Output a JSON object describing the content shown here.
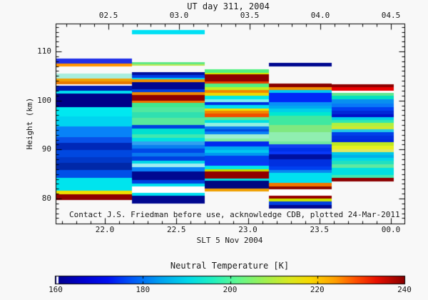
{
  "figure": {
    "top_axis": {
      "title": "UT day 311, 2004",
      "tick_labels": [
        "02.5",
        "03.0",
        "03.5",
        "04.0",
        "04.5"
      ],
      "tick_values": [
        2.5,
        3.0,
        3.5,
        4.0,
        4.5
      ]
    },
    "left_axis": {
      "label": "Height (km)",
      "tick_labels": [
        "80",
        "90",
        "100",
        "110"
      ],
      "tick_values": [
        80,
        90,
        100,
        110
      ]
    },
    "bottom_axis": {
      "label": "SLT 5 Nov 2004",
      "tick_labels": [
        "22.0",
        "22.5",
        "23.0",
        "23.5",
        "00.0"
      ],
      "tick_values": [
        22.0,
        22.5,
        23.0,
        23.5,
        24.0
      ]
    },
    "annotation": "Contact J.S. Friedman before use, acknowledge CDB, plotted 24-Mar-2011",
    "colorbar": {
      "title": "Neutral Temperature [K]",
      "tick_labels": [
        "160",
        "180",
        "200",
        "220",
        "240"
      ],
      "tick_values": [
        160,
        180,
        200,
        220,
        240
      ]
    }
  },
  "chart_data": {
    "type": "heatmap",
    "title": "UT day 311, 2004",
    "xlabel": "SLT 5 Nov 2004",
    "ylabel": "Height (km)",
    "value_label": "Neutral Temperature [K]",
    "value_range": [
      160,
      240
    ],
    "xlim_slt": [
      21.656,
      24.095
    ],
    "ylim_km": [
      74.9,
      115.7
    ],
    "colormap_stops": [
      [
        0.0,
        "#00008a"
      ],
      [
        0.08,
        "#0000d0"
      ],
      [
        0.15,
        "#0010f0"
      ],
      [
        0.22,
        "#0058f8"
      ],
      [
        0.3,
        "#00a0f0"
      ],
      [
        0.38,
        "#00d8e8"
      ],
      [
        0.45,
        "#20f0c0"
      ],
      [
        0.52,
        "#60f890"
      ],
      [
        0.6,
        "#a0f050"
      ],
      [
        0.67,
        "#d8e820"
      ],
      [
        0.73,
        "#f8d800"
      ],
      [
        0.8,
        "#ffa000"
      ],
      [
        0.86,
        "#ff5000"
      ],
      [
        0.92,
        "#e81000"
      ],
      [
        1.0,
        "#8a0000"
      ]
    ],
    "columns": [
      {
        "t_start": 21.656,
        "t_end": 22.19,
        "segments": [
          [
            108.53,
            107.58,
            "#2030e8"
          ],
          [
            107.58,
            107.0,
            "#ff9400"
          ],
          [
            105.5,
            104.46,
            "#a8eedd"
          ],
          [
            104.46,
            103.88,
            "#f0a000"
          ],
          [
            103.88,
            103.37,
            "#e87800"
          ],
          [
            103.37,
            103.0,
            "#ffffff"
          ],
          [
            103.0,
            101.98,
            "#0018b0"
          ],
          [
            101.98,
            101.47,
            "#00dff0"
          ],
          [
            101.47,
            98.63,
            "#000088"
          ],
          [
            98.63,
            96.74,
            "#00e8f0"
          ],
          [
            96.74,
            94.7,
            "#00d4f0"
          ],
          [
            94.7,
            92.52,
            "#0882f8"
          ],
          [
            92.52,
            91.35,
            "#0850e8"
          ],
          [
            91.35,
            89.9,
            "#0028b8"
          ],
          [
            89.9,
            88.44,
            "#0048e0"
          ],
          [
            88.44,
            87.27,
            "#0038c8"
          ],
          [
            87.27,
            85.82,
            "#0028a8"
          ],
          [
            85.82,
            84.22,
            "#0050e8"
          ],
          [
            84.22,
            81.6,
            "#00e4ee"
          ],
          [
            81.6,
            80.94,
            "#f0e000"
          ],
          [
            80.94,
            79.7,
            "#900000"
          ]
        ]
      },
      {
        "t_start": 22.19,
        "t_end": 22.698,
        "segments": [
          [
            114.39,
            113.43,
            "#00e0f4"
          ],
          [
            107.84,
            107.36,
            "#60e886"
          ],
          [
            107.36,
            107.03,
            "#bce850"
          ],
          [
            105.81,
            105.14,
            "#0010a0"
          ],
          [
            105.14,
            104.56,
            "#0040e8"
          ],
          [
            104.56,
            104.27,
            "#00d0f0"
          ],
          [
            104.27,
            103.77,
            "#f09000"
          ],
          [
            103.77,
            102.27,
            "#000890"
          ],
          [
            102.27,
            101.73,
            "#0040e0"
          ],
          [
            101.73,
            101.15,
            "#f08800"
          ],
          [
            101.15,
            99.94,
            "#8c0000"
          ],
          [
            99.94,
            99.51,
            "#f07000"
          ],
          [
            99.51,
            98.63,
            "#40e890"
          ],
          [
            98.63,
            97.61,
            "#50e8a0"
          ],
          [
            97.61,
            96.45,
            "#30e0b0"
          ],
          [
            96.45,
            94.99,
            "#58e89c"
          ],
          [
            94.99,
            94.26,
            "#0040e0"
          ],
          [
            94.26,
            93.05,
            "#00e0d0"
          ],
          [
            93.05,
            92.32,
            "#40e8b0"
          ],
          [
            92.32,
            91.6,
            "#00e0e0"
          ],
          [
            91.6,
            90.87,
            "#30a0f0"
          ],
          [
            90.87,
            90.14,
            "#0880f0"
          ],
          [
            90.14,
            89.27,
            "#0048e8"
          ],
          [
            89.27,
            88.54,
            "#0878f0"
          ],
          [
            88.54,
            87.71,
            "#0040e0"
          ],
          [
            87.71,
            87.08,
            "#00d8e8"
          ],
          [
            87.08,
            86.35,
            "#a0ecf0"
          ],
          [
            86.35,
            85.48,
            "#0880f8"
          ],
          [
            85.48,
            83.82,
            "#000890"
          ],
          [
            83.82,
            83.09,
            "#0040e0"
          ],
          [
            83.09,
            82.47,
            "#00e0f0"
          ],
          [
            82.47,
            81.12,
            "#ffffff"
          ],
          [
            81.12,
            80.53,
            "#00e0f0"
          ],
          [
            80.53,
            78.97,
            "#000890"
          ]
        ]
      },
      {
        "t_start": 22.698,
        "t_end": 23.147,
        "segments": [
          [
            106.3,
            105.66,
            "#50f080"
          ],
          [
            105.66,
            105.33,
            "#d0f000"
          ],
          [
            105.33,
            103.88,
            "#8c0000"
          ],
          [
            103.88,
            103.39,
            "#e84000"
          ],
          [
            103.39,
            102.76,
            "#50f080"
          ],
          [
            102.76,
            102.13,
            "#c0f020"
          ],
          [
            102.13,
            101.55,
            "#f08800"
          ],
          [
            101.55,
            100.92,
            "#f0d800"
          ],
          [
            100.92,
            100.2,
            "#00e8e8"
          ],
          [
            100.2,
            99.61,
            "#80f0f0"
          ],
          [
            99.61,
            99.03,
            "#0030e0"
          ],
          [
            99.03,
            98.39,
            "#00e0f0"
          ],
          [
            98.39,
            97.87,
            "#f0e000"
          ],
          [
            97.87,
            97.28,
            "#f08800"
          ],
          [
            97.28,
            96.6,
            "#f05000"
          ],
          [
            96.6,
            95.97,
            "#60e890"
          ],
          [
            95.97,
            95.39,
            "#00e0e0"
          ],
          [
            95.39,
            94.75,
            "#90f0e0"
          ],
          [
            94.75,
            94.16,
            "#0878f0"
          ],
          [
            94.16,
            93.68,
            "#0048e0"
          ],
          [
            93.68,
            93.05,
            "#0880f8"
          ],
          [
            93.05,
            92.22,
            "#a0f0d0"
          ],
          [
            92.22,
            91.64,
            "#80eea0"
          ],
          [
            91.64,
            90.66,
            "#0028f0"
          ],
          [
            90.66,
            89.93,
            "#00a8f0"
          ],
          [
            89.93,
            89.31,
            "#00c8f0"
          ],
          [
            89.31,
            88.73,
            "#0098f0"
          ],
          [
            88.73,
            87.37,
            "#0040f0"
          ],
          [
            87.37,
            86.68,
            "#0838f8"
          ],
          [
            86.68,
            85.91,
            "#00e8e8"
          ],
          [
            85.91,
            85.52,
            "#c8d800"
          ],
          [
            85.52,
            84.11,
            "#900000"
          ],
          [
            84.11,
            83.63,
            "#00e0e0"
          ],
          [
            83.63,
            82.02,
            "#000880"
          ],
          [
            82.02,
            81.44,
            "#f0a000"
          ]
        ]
      },
      {
        "t_start": 23.147,
        "t_end": 23.588,
        "segments": [
          [
            107.61,
            106.88,
            "#000890"
          ],
          [
            103.43,
            102.75,
            "#880000"
          ],
          [
            102.75,
            102.17,
            "#f09000"
          ],
          [
            102.17,
            101.59,
            "#00c8f0"
          ],
          [
            101.59,
            99.61,
            "#0028f8"
          ],
          [
            99.61,
            98.89,
            "#0890f8"
          ],
          [
            98.89,
            98.3,
            "#00a8f0"
          ],
          [
            98.3,
            97.67,
            "#00d0e8"
          ],
          [
            97.67,
            96.94,
            "#00e8d0"
          ],
          [
            96.94,
            95.0,
            "#40e8a0"
          ],
          [
            95.0,
            93.55,
            "#80e880"
          ],
          [
            93.55,
            91.66,
            "#90eeb0"
          ],
          [
            91.66,
            91.06,
            "#70e8a0"
          ],
          [
            91.06,
            90.28,
            "#1040f0"
          ],
          [
            90.28,
            89.6,
            "#0030e8"
          ],
          [
            89.6,
            88.98,
            "#0838f8"
          ],
          [
            88.98,
            88.0,
            "#0010a0"
          ],
          [
            88.0,
            86.54,
            "#0030e0"
          ],
          [
            86.54,
            85.82,
            "#0040f0"
          ],
          [
            85.82,
            85.19,
            "#0888f0"
          ],
          [
            85.19,
            83.15,
            "#00e0f0"
          ],
          [
            83.15,
            82.51,
            "#f07800"
          ],
          [
            82.51,
            81.93,
            "#8c0800"
          ],
          [
            81.93,
            80.53,
            "#ffffff"
          ],
          [
            80.53,
            79.99,
            "#980000"
          ],
          [
            79.99,
            79.41,
            "#c8e800"
          ],
          [
            79.41,
            78.64,
            "#0040e0"
          ],
          [
            78.64,
            77.95,
            "#000890"
          ]
        ]
      },
      {
        "t_start": 23.588,
        "t_end": 24.02,
        "segments": [
          [
            103.24,
            102.66,
            "#8c0000"
          ],
          [
            102.66,
            102.02,
            "#e80000"
          ],
          [
            102.02,
            101.51,
            "#ffffff"
          ],
          [
            101.51,
            100.97,
            "#60e890"
          ],
          [
            100.97,
            100.2,
            "#00e0c0"
          ],
          [
            100.2,
            99.37,
            "#0890f0"
          ],
          [
            99.37,
            98.63,
            "#0878f8"
          ],
          [
            98.63,
            97.91,
            "#0040f0"
          ],
          [
            97.91,
            97.18,
            "#0028d8"
          ],
          [
            97.18,
            96.55,
            "#0010c8"
          ],
          [
            96.55,
            95.97,
            "#00d0e8"
          ],
          [
            95.97,
            95.39,
            "#30e8b0"
          ],
          [
            95.39,
            94.75,
            "#b0f040"
          ],
          [
            94.75,
            94.12,
            "#d0e830"
          ],
          [
            94.12,
            93.55,
            "#20c8e8"
          ],
          [
            93.55,
            92.81,
            "#0040e8"
          ],
          [
            92.81,
            92.08,
            "#0030e0"
          ],
          [
            92.08,
            91.46,
            "#0028e0"
          ],
          [
            91.46,
            90.82,
            "#c0e820"
          ],
          [
            90.82,
            90.09,
            "#e8f020"
          ],
          [
            90.09,
            89.5,
            "#e0e860"
          ],
          [
            89.5,
            88.88,
            "#00c8e8"
          ],
          [
            88.88,
            88.25,
            "#00b0e8"
          ],
          [
            88.25,
            87.66,
            "#00d8e8"
          ],
          [
            87.66,
            86.93,
            "#20e0c0"
          ],
          [
            86.93,
            86.21,
            "#60e8a0"
          ],
          [
            86.21,
            84.75,
            "#00e0e0"
          ],
          [
            84.75,
            84.17,
            "#40e8b0"
          ],
          [
            84.17,
            83.53,
            "#8c0000"
          ]
        ]
      }
    ]
  }
}
